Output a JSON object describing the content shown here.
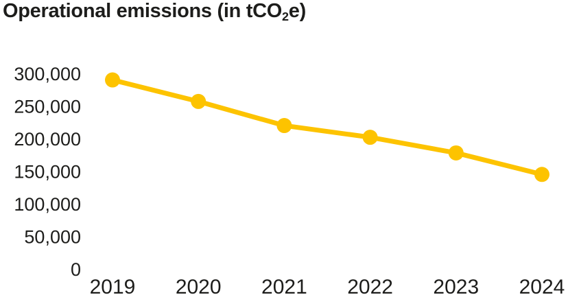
{
  "title": {
    "prefix": "Operational emissions (in tCO",
    "subscript": "2",
    "suffix": "e)"
  },
  "colors": {
    "line": "#FDC300",
    "text": "#1D1D1B",
    "background": "#FFFFFF"
  },
  "chart_data": {
    "type": "line",
    "title": "Operational emissions (in tCO2e)",
    "categories": [
      "2019",
      "2020",
      "2021",
      "2022",
      "2023",
      "2024"
    ],
    "series": [
      {
        "name": "Operational emissions",
        "values": [
          291000,
          258000,
          221000,
          203000,
          179000,
          146000
        ]
      }
    ],
    "xlabel": "",
    "ylabel": "",
    "ylim": [
      0,
      300000
    ],
    "yticks": [
      {
        "value": 300000,
        "label": "300,000"
      },
      {
        "value": 250000,
        "label": "250,000"
      },
      {
        "value": 200000,
        "label": "200,000"
      },
      {
        "value": 150000,
        "label": "150,000"
      },
      {
        "value": 100000,
        "label": "100,000"
      },
      {
        "value": 50000,
        "label": "50,000"
      },
      {
        "value": 0,
        "label": "0"
      }
    ],
    "grid": false,
    "legend": "none",
    "marker": "circle",
    "line_width": 7,
    "marker_radius": 11
  }
}
